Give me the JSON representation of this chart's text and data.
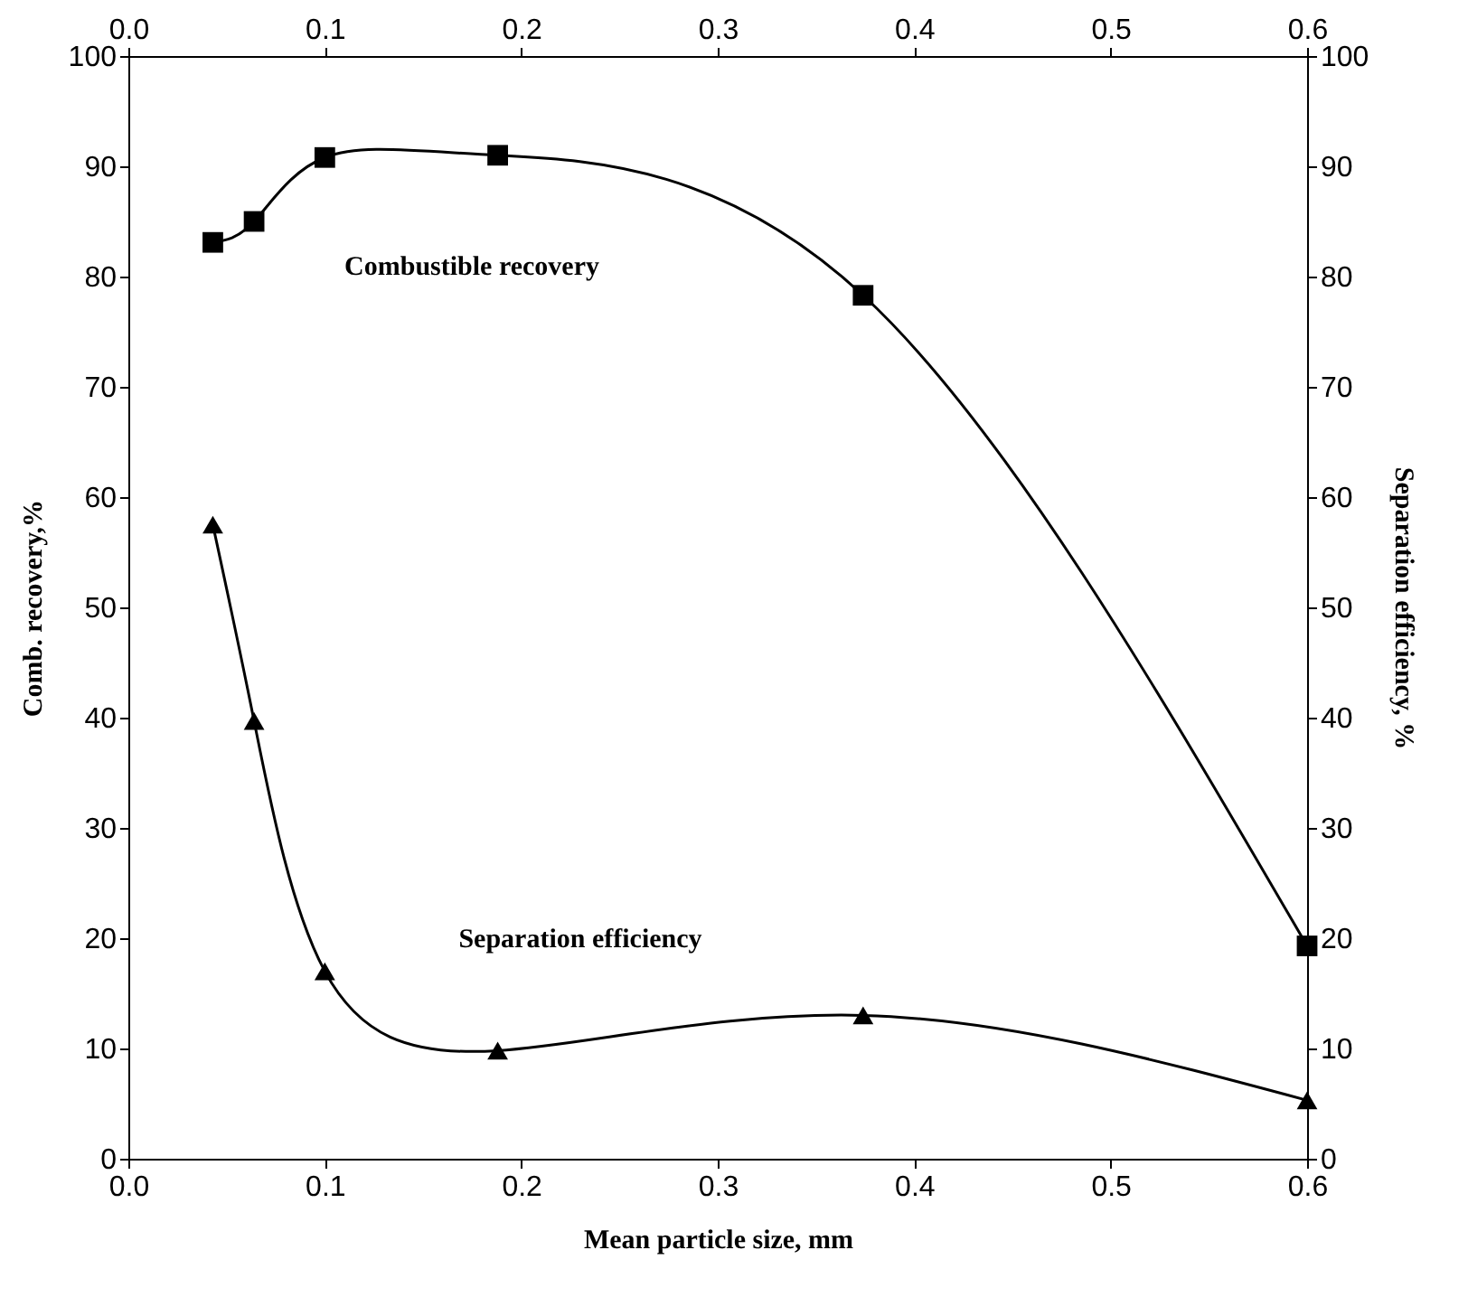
{
  "chart_data": {
    "type": "line",
    "xlabel": "Mean particle size, mm",
    "ylabel": "Comb. recovery,%",
    "y2label": "Separation efficiency, %",
    "x": [
      0.043,
      0.064,
      0.1,
      0.188,
      0.374,
      0.6
    ],
    "series": [
      {
        "color": "#000000",
        "marker": "square",
        "values": [
          83.1,
          85.0,
          90.8,
          91.0,
          78.3,
          19.3
        ]
      },
      {
        "color": "#000000",
        "marker": "triangle",
        "axis": "y2",
        "values": [
          57.5,
          39.7,
          17.0,
          9.8,
          13.0,
          5.3
        ]
      }
    ],
    "xlim": [
      0,
      0.6
    ],
    "xticks": [
      {
        "value": 0,
        "label": "0.0"
      },
      0.1,
      0.2,
      0.3,
      0.4,
      0.5,
      0.6
    ],
    "x2lim": [
      0,
      0.6
    ],
    "x2ticks": [
      {
        "value": 0,
        "label": "0.0"
      },
      0.1,
      0.2,
      0.3,
      0.4,
      0.5,
      0.6
    ],
    "ylim": [
      0,
      100
    ],
    "yticks": [
      0,
      10,
      20,
      30,
      40,
      50,
      60,
      70,
      80,
      90,
      100
    ],
    "y2lim": [
      0,
      100
    ],
    "y2ticks": [
      0,
      10,
      20,
      30,
      40,
      50,
      60,
      70,
      80,
      90,
      100
    ],
    "annotations": [
      "Combustible recovery",
      "Separation efficiency"
    ],
    "grid": false,
    "line_style": "solid"
  }
}
